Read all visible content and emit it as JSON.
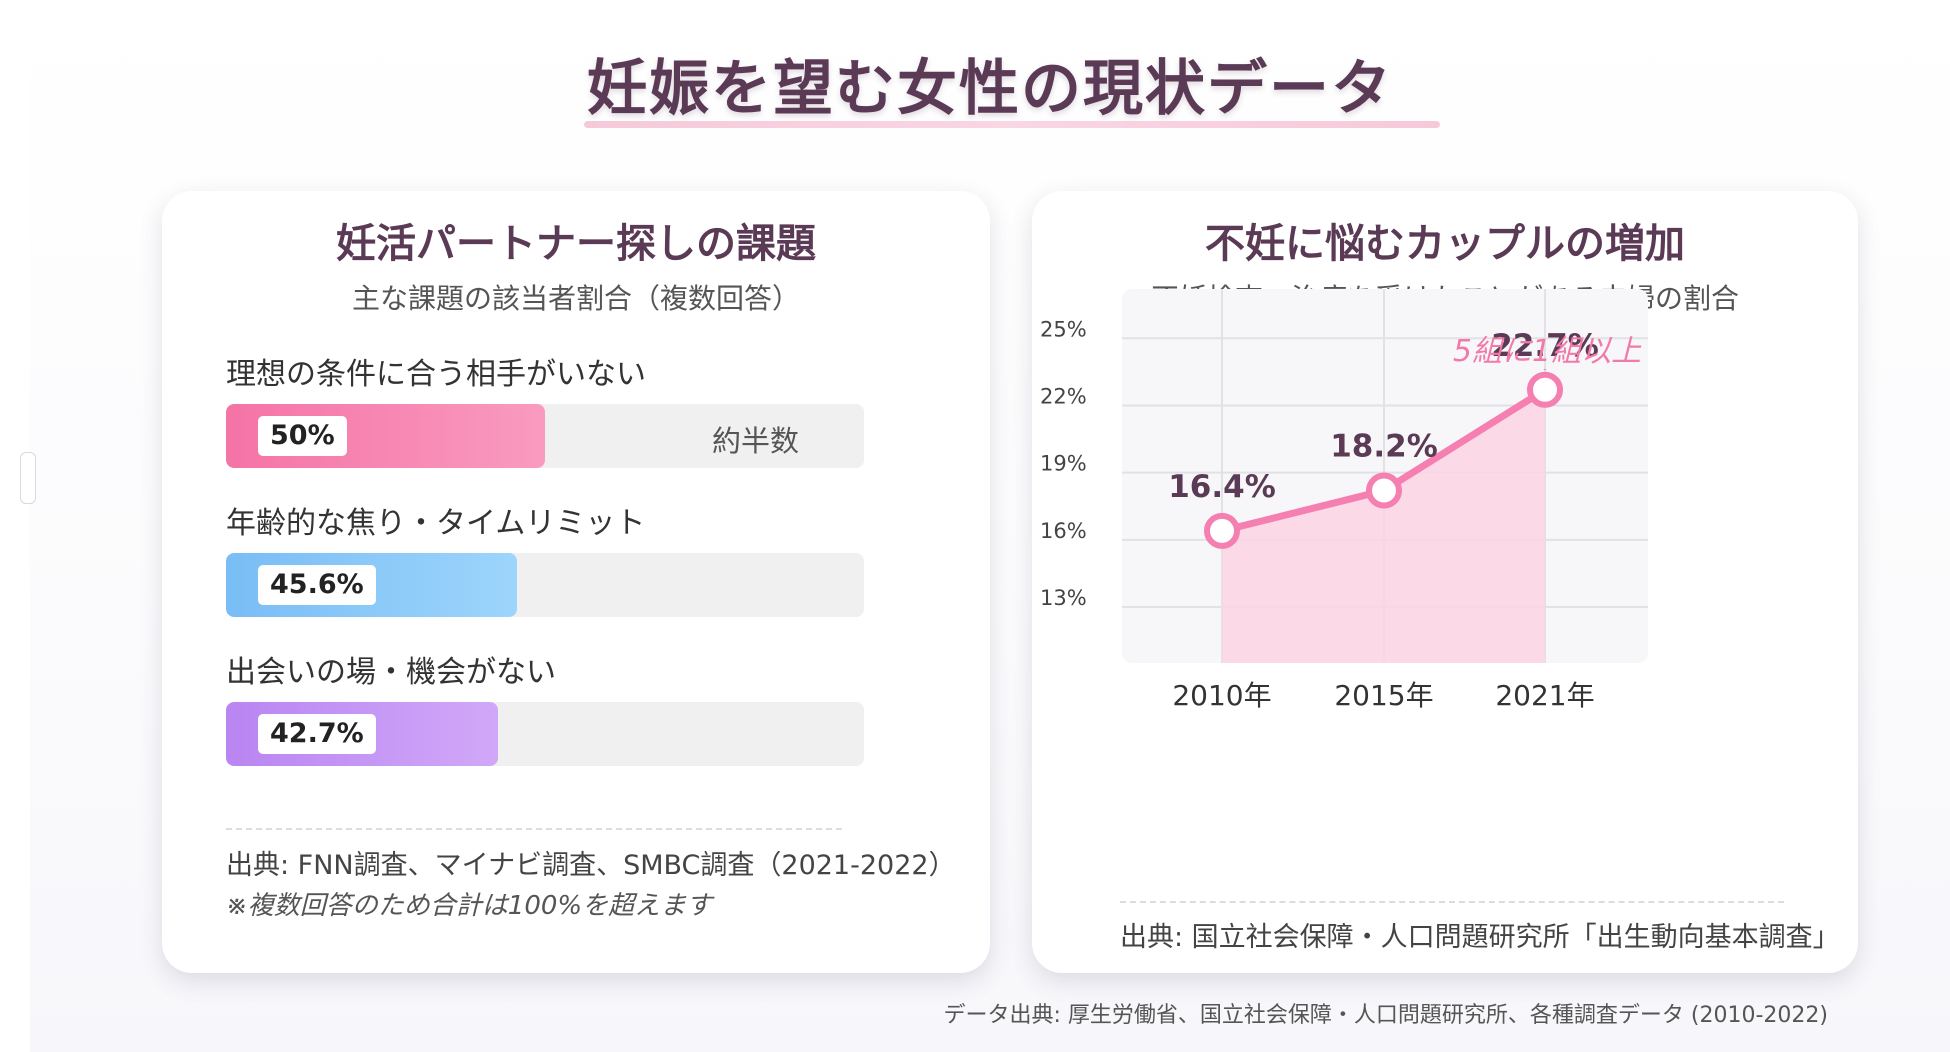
{
  "page": {
    "title": "妊娠を望む女性の現状データ",
    "footer": "データ出典: 厚生労働省、国立社会保障・人口問題研究所、各種調査データ (2010-2022)"
  },
  "left_card": {
    "title": "妊活パートナー探しの課題",
    "subtitle": "主な課題の該当者割合（複数回答）",
    "source": "出典: FNN調査、マイナビ調査、SMBC調査（2021-2022）",
    "note": "※複数回答のため合計は100%を超えます"
  },
  "right_card": {
    "title": "不妊に悩むカップルの増加",
    "subtitle": "不妊検査・治療を受けたことがある夫婦の割合",
    "source": "出典: 国立社会保障・人口問題研究所「出生動向基本調査」"
  },
  "colors": {
    "pink": "#f27aa8",
    "blue": "#7cc4f7",
    "purple": "#c08ff4",
    "line": "#f47fb0",
    "area": "#fbd3e3",
    "annotation": "#f27aa8"
  },
  "chart_data": [
    {
      "type": "bar",
      "title": "妊活パートナー探しの課題",
      "subtitle": "主な課題の該当者割合（複数回答）",
      "orientation": "horizontal",
      "categories": [
        "理想の条件に合う相手がいない",
        "年齢的な焦り・タイムリミット",
        "出会いの場・機会がない"
      ],
      "values": [
        50,
        45.6,
        42.7
      ],
      "value_labels": [
        "50%",
        "45.6%",
        "42.7%"
      ],
      "annotations": [
        "約半数",
        "",
        ""
      ],
      "xlim": [
        0,
        100
      ],
      "unit": "%"
    },
    {
      "type": "line",
      "title": "不妊に悩むカップルの増加",
      "subtitle": "不妊検査・治療を受けたことがある夫婦の割合",
      "x": [
        "2010年",
        "2015年",
        "2021年"
      ],
      "series": [
        {
          "values": [
            16.4,
            18.2,
            22.7
          ]
        }
      ],
      "value_labels": [
        "16.4%",
        "18.2%",
        "22.7%"
      ],
      "y_ticks": [
        "25%",
        "22%",
        "19%",
        "16%",
        "13%"
      ],
      "ylim": [
        10.5,
        27.2
      ],
      "grid": true,
      "fill_area": true,
      "annotation": {
        "text": "5組に1組以上",
        "at": "2021年"
      }
    }
  ]
}
